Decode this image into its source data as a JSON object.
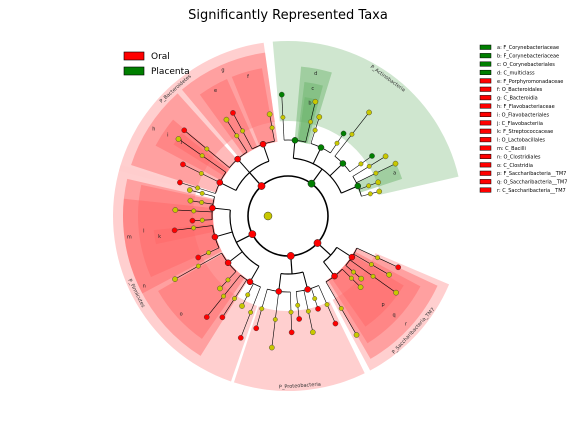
{
  "chart_data": {
    "type": "cladogram",
    "title": "Significantly Represented Taxa",
    "legend": [
      {
        "name": "Oral",
        "color": "#ff0000"
      },
      {
        "name": "Placenta",
        "color": "#007f00"
      }
    ],
    "colors": {
      "oral": "#ff0000",
      "placenta": "#007f00",
      "oral_light": "#ffcccc",
      "placenta_light": "#cce5cc",
      "neutral": "#c8c800"
    },
    "sectors": [
      {
        "label": "P_Bacteroidetes",
        "group": "oral",
        "start": -75,
        "end": -8,
        "level": "phylum"
      },
      {
        "label": "P_Actinobacteria",
        "group": "placenta",
        "start": -5,
        "end": 77,
        "level": "phylum"
      },
      {
        "label": "P_Saccharibacteria_TM7",
        "group": "oral",
        "start": 113,
        "end": 152,
        "level": "phylum"
      },
      {
        "label": "P_Proteobacteria",
        "group": "oral",
        "start": 154,
        "end": 198,
        "level": "phylum"
      },
      {
        "label": "P_Firmicutes",
        "group": "oral",
        "start": 199,
        "end": 287,
        "level": "phylum"
      }
    ],
    "sub_sectors": [
      {
        "label": "g",
        "group": "oral",
        "start": -40,
        "end": -8,
        "ring": 1
      },
      {
        "label": "h",
        "group": "oral",
        "start": -72,
        "end": -42,
        "ring": 1
      },
      {
        "label": "f",
        "group": "oral",
        "start": -22,
        "end": -10,
        "ring": 2
      },
      {
        "label": "e",
        "group": "oral",
        "start": -36,
        "end": -24,
        "ring": 2
      },
      {
        "label": "i",
        "group": "oral",
        "start": -62,
        "end": -50,
        "ring": 2
      },
      {
        "label": "j",
        "group": "oral",
        "start": -58,
        "end": -52,
        "ring": 3
      },
      {
        "label": "d",
        "group": "placenta",
        "start": 5,
        "end": 17,
        "ring": 2
      },
      {
        "label": "c",
        "group": "placenta",
        "start": 7,
        "end": 15,
        "ring": 3
      },
      {
        "label": "b",
        "group": "placenta",
        "start": 8,
        "end": 14,
        "ring": 4
      },
      {
        "label": "a",
        "group": "placenta",
        "start": 64,
        "end": 72,
        "ring": 4
      },
      {
        "label": "r",
        "group": "oral",
        "start": 115,
        "end": 150,
        "ring": 1
      },
      {
        "label": "q",
        "group": "oral",
        "start": 118,
        "end": 148,
        "ring": 2
      },
      {
        "label": "p",
        "group": "oral",
        "start": 121,
        "end": 145,
        "ring": 3
      },
      {
        "label": "o",
        "group": "oral",
        "start": 215,
        "end": 240,
        "ring": 2
      },
      {
        "label": "n",
        "group": "oral",
        "start": 212,
        "end": 276,
        "ring": 1
      },
      {
        "label": "m",
        "group": "oral",
        "start": 242,
        "end": 283,
        "ring": 1
      },
      {
        "label": "l",
        "group": "oral",
        "start": 246,
        "end": 282,
        "ring": 2
      },
      {
        "label": "k",
        "group": "oral",
        "start": 258,
        "end": 264,
        "ring": 3
      }
    ],
    "taxa_legend": [
      {
        "key": "a",
        "label": "a: F_Corynebacteriaceae",
        "group": "placenta"
      },
      {
        "key": "b",
        "label": "b: F_Corynebacteriaceae",
        "group": "placenta"
      },
      {
        "key": "c",
        "label": "c: O_Corynebacteriales",
        "group": "placenta"
      },
      {
        "key": "d",
        "label": "d: C_multiclass",
        "group": "placenta"
      },
      {
        "key": "e",
        "label": "e: F_Porphyromonadaceae",
        "group": "oral"
      },
      {
        "key": "f",
        "label": "f: O_Bacteroidales",
        "group": "oral"
      },
      {
        "key": "g",
        "label": "g: C_Bacteroidia",
        "group": "oral"
      },
      {
        "key": "h",
        "label": "h: F_Flavobacteriaceae",
        "group": "oral"
      },
      {
        "key": "i",
        "label": "i: O_Flavobacteriales",
        "group": "oral"
      },
      {
        "key": "j",
        "label": "j: C_Flavobacteriia",
        "group": "oral"
      },
      {
        "key": "k",
        "label": "k: F_Streptococcaceae",
        "group": "oral"
      },
      {
        "key": "l",
        "label": "l: O_Lactobacillales",
        "group": "oral"
      },
      {
        "key": "m",
        "label": "m: C_Bacilli",
        "group": "oral"
      },
      {
        "key": "n",
        "label": "n: O_Clostridiales",
        "group": "oral"
      },
      {
        "key": "o",
        "label": "o: C_Clostridia",
        "group": "oral"
      },
      {
        "key": "p",
        "label": "p: F_Saccharibacteria__TM7",
        "group": "oral"
      },
      {
        "key": "q",
        "label": "q: O_Saccharibacteria__TM7",
        "group": "oral"
      },
      {
        "key": "r",
        "label": "r: C_Saccharibacteria__TM7",
        "group": "oral"
      }
    ]
  }
}
